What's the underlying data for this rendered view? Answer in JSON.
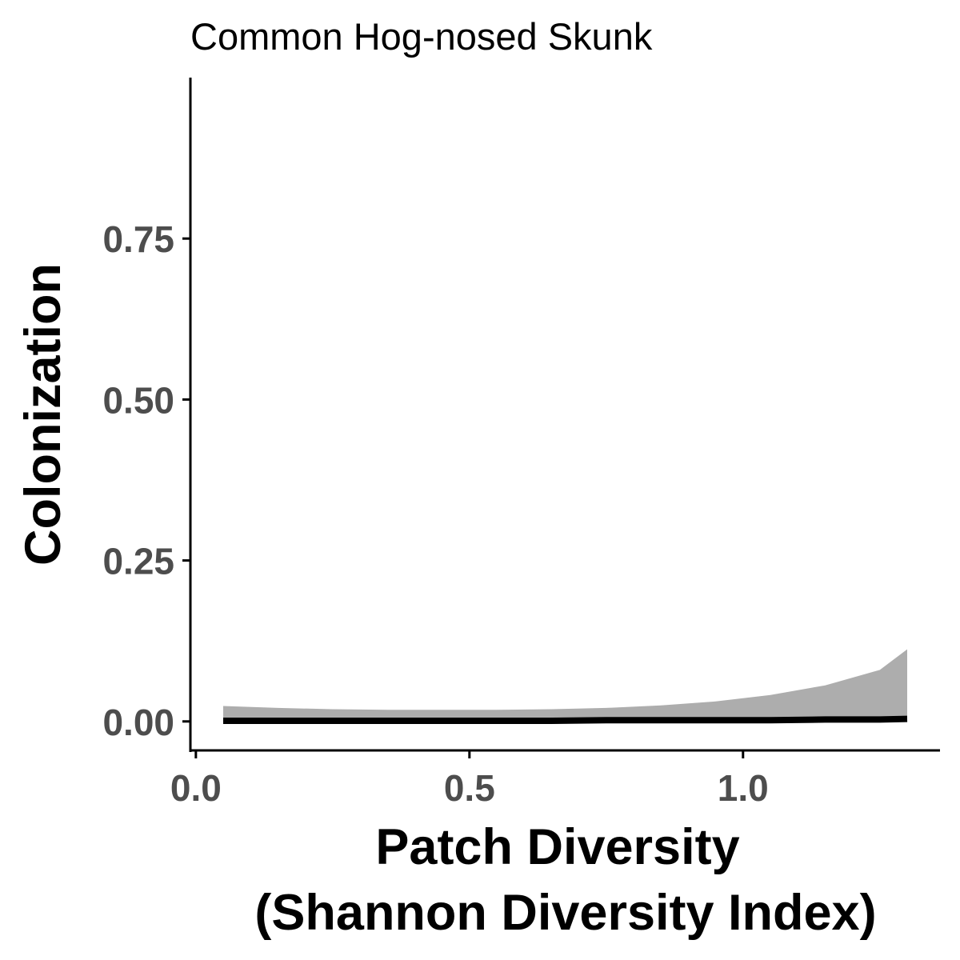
{
  "chart_data": {
    "type": "area",
    "title": "Common Hog-nosed Skunk",
    "xlabel": [
      "Patch Diversity",
      "(Shannon Diversity Index)"
    ],
    "ylabel": "Colonization",
    "xlim": [
      -0.01,
      1.36
    ],
    "ylim": [
      -0.045,
      1.0
    ],
    "x_ticks": [
      0.0,
      0.5,
      1.0
    ],
    "x_tick_labels": [
      "0.0",
      "0.5",
      "1.0"
    ],
    "y_ticks": [
      0.0,
      0.25,
      0.5,
      0.75
    ],
    "y_tick_labels": [
      "0.00",
      "0.25",
      "0.50",
      "0.75"
    ],
    "grid": false,
    "legend": "none",
    "colors": {
      "line": "#000000",
      "ribbon": "#adadad",
      "axis": "#000000",
      "tick_text": "#4d4d4d"
    },
    "series": [
      {
        "x": [
          0.05,
          0.15,
          0.25,
          0.35,
          0.45,
          0.55,
          0.65,
          0.75,
          0.85,
          0.95,
          1.05,
          1.15,
          1.25,
          1.3
        ],
        "y": [
          0.001,
          0.001,
          0.001,
          0.001,
          0.001,
          0.001,
          0.001,
          0.002,
          0.002,
          0.002,
          0.002,
          0.003,
          0.003,
          0.004
        ],
        "lower": [
          0.0,
          0.0,
          0.0,
          0.0,
          0.0,
          0.0,
          0.0,
          0.0,
          0.0,
          0.0,
          0.0,
          0.0,
          0.0,
          0.0
        ],
        "upper": [
          0.024,
          0.021,
          0.019,
          0.018,
          0.018,
          0.018,
          0.019,
          0.021,
          0.025,
          0.031,
          0.041,
          0.056,
          0.08,
          0.112
        ]
      }
    ]
  }
}
